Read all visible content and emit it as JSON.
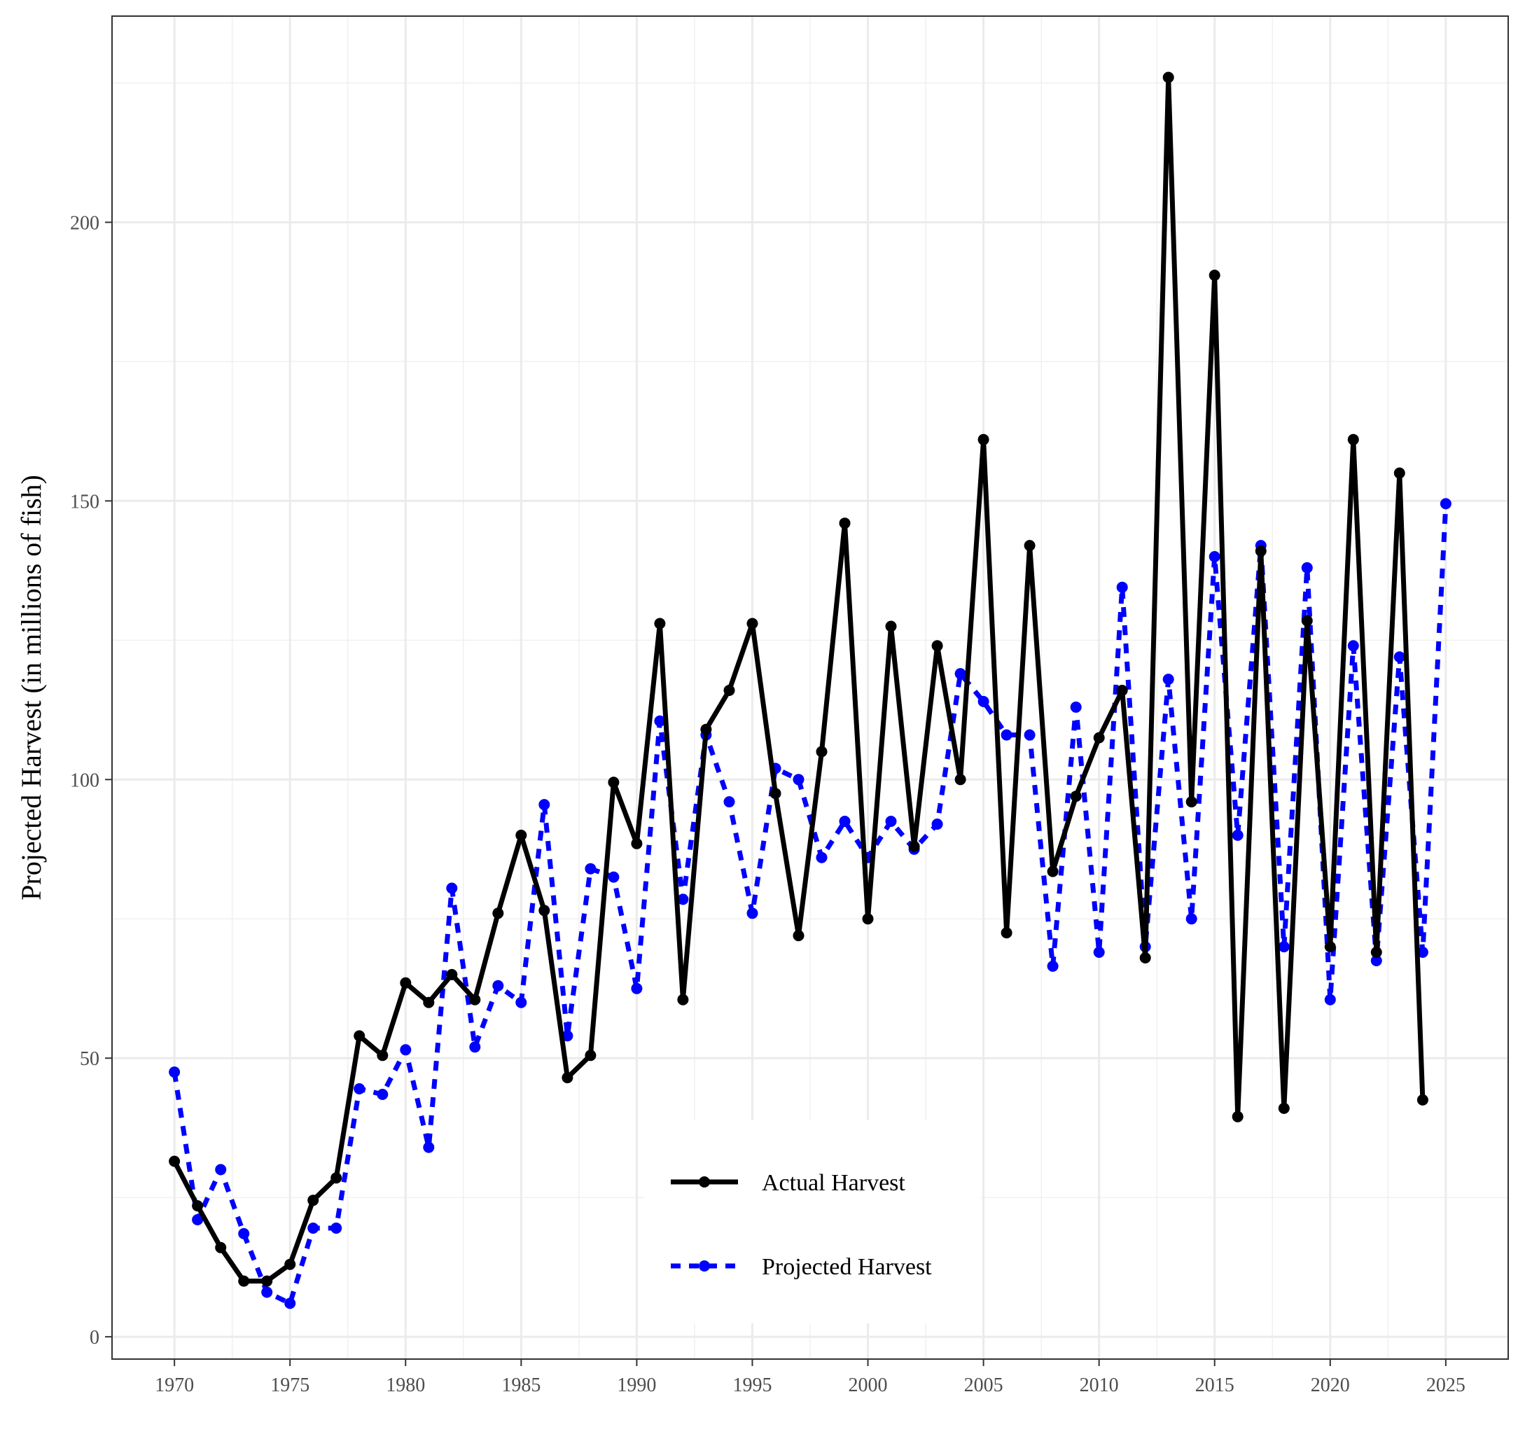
{
  "chart_data": {
    "type": "line",
    "title": "",
    "xlabel": "",
    "ylabel": "Projected Harvest (in millions of fish)",
    "xlim": [
      1967.3,
      2027.7
    ],
    "ylim": [
      -4,
      237
    ],
    "x_ticks": [
      1970,
      1975,
      1980,
      1985,
      1990,
      1995,
      2000,
      2005,
      2010,
      2015,
      2020,
      2025
    ],
    "y_ticks": [
      0,
      50,
      100,
      150,
      200
    ],
    "x_tick_labels": [
      "1970",
      "1975",
      "1980",
      "1985",
      "1990",
      "1995",
      "2000",
      "2005",
      "2010",
      "2015",
      "2020",
      "2025"
    ],
    "y_tick_labels": [
      "0",
      "50",
      "100",
      "150",
      "200"
    ],
    "grid": true,
    "legend": "bottom-center",
    "series": [
      {
        "name": "Actual Harvest",
        "color": "#000000",
        "line_style": "solid",
        "x": [
          1970,
          1971,
          1972,
          1973,
          1974,
          1975,
          1976,
          1977,
          1978,
          1979,
          1980,
          1981,
          1982,
          1983,
          1984,
          1985,
          1986,
          1987,
          1988,
          1989,
          1990,
          1991,
          1992,
          1993,
          1994,
          1995,
          1996,
          1997,
          1998,
          1999,
          2000,
          2001,
          2002,
          2003,
          2004,
          2005,
          2006,
          2007,
          2008,
          2009,
          2010,
          2011,
          2012,
          2013,
          2014,
          2015,
          2016,
          2017,
          2018,
          2019,
          2020,
          2021,
          2022,
          2023,
          2024
        ],
        "values": [
          31.5,
          23.5,
          16,
          10,
          10,
          13,
          24.5,
          28.5,
          54,
          50.5,
          63.5,
          60,
          65,
          60.5,
          76,
          90,
          76.5,
          46.5,
          50.5,
          99.5,
          88.5,
          128,
          60.5,
          109,
          116,
          128,
          97.5,
          72,
          105,
          146,
          75,
          127.5,
          88,
          124,
          100,
          161,
          72.5,
          142,
          83.5,
          97,
          107.5,
          116,
          68,
          226,
          96,
          190.5,
          39.5,
          141,
          41,
          128.5,
          70,
          161,
          69,
          155,
          42.5
        ]
      },
      {
        "name": "Projected Harvest",
        "color": "#0000ff",
        "line_style": "dashed",
        "x": [
          1970,
          1971,
          1972,
          1973,
          1974,
          1975,
          1976,
          1977,
          1978,
          1979,
          1980,
          1981,
          1982,
          1983,
          1984,
          1985,
          1986,
          1987,
          1988,
          1989,
          1990,
          1991,
          1992,
          1993,
          1994,
          1995,
          1996,
          1997,
          1998,
          1999,
          2000,
          2001,
          2002,
          2003,
          2004,
          2005,
          2006,
          2007,
          2008,
          2009,
          2010,
          2011,
          2012,
          2013,
          2014,
          2015,
          2016,
          2017,
          2018,
          2019,
          2020,
          2021,
          2022,
          2023,
          2024,
          2025
        ],
        "values": [
          47.5,
          21,
          30,
          18.5,
          8,
          6,
          19.5,
          19.5,
          44.5,
          43.5,
          51.5,
          34,
          80.5,
          52,
          63,
          60,
          95.5,
          54,
          84,
          82.5,
          62.5,
          110.5,
          78.5,
          108,
          96,
          76,
          102,
          100,
          86,
          92.5,
          86,
          92.5,
          87.5,
          92,
          119,
          114,
          108,
          108,
          66.5,
          113,
          69,
          134.5,
          70,
          118,
          75,
          140,
          90,
          142,
          70,
          138,
          60.5,
          124,
          67.5,
          122,
          69,
          149.5
        ]
      }
    ]
  }
}
